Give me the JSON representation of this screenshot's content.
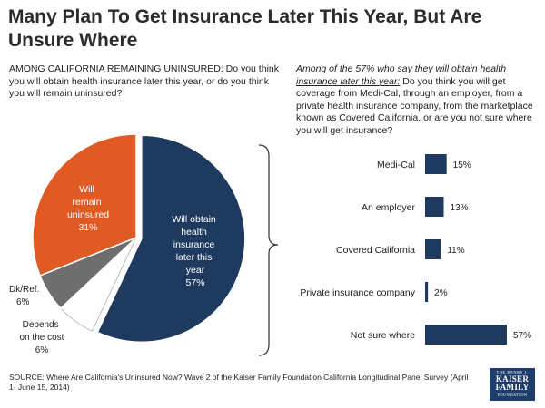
{
  "title": "Many Plan To Get Insurance Later This Year, But Are Unsure Where",
  "left_question": {
    "lead": "AMONG CALIFORNIA REMAINING UNINSURED:",
    "text": " Do you think you will obtain health insurance later this year, or do you think you will remain uninsured?"
  },
  "right_question": {
    "lead": "Among of the 57% who say they will obtain health insurance later this year:",
    "text": " Do you think you will get coverage from Medi-Cal, through an employer, from a private health insurance company, from the marketplace known as Covered California, or are you not sure where you will get insurance?"
  },
  "chart_data": [
    {
      "type": "pie",
      "slices": [
        {
          "label": "Will obtain health insurance later this year",
          "value": 57,
          "value_label": "57%",
          "color": "#1f3a5f"
        },
        {
          "label": "Depends on the cost",
          "value": 6,
          "value_label": "6%",
          "color": "#ffffff"
        },
        {
          "label": "Dk/Ref.",
          "value": 6,
          "value_label": "6%",
          "color": "#6e6e6e"
        },
        {
          "label": "Will remain uninsured",
          "value": 31,
          "value_label": "31%",
          "color": "#e05a24"
        }
      ]
    },
    {
      "type": "bar",
      "orientation": "horizontal",
      "categories": [
        "Medi-Cal",
        "An employer",
        "Covered California",
        "Private insurance company",
        "Not sure where"
      ],
      "values": [
        15,
        13,
        11,
        2,
        57
      ],
      "value_labels": [
        "15%",
        "13%",
        "11%",
        "2%",
        "57%"
      ],
      "color": "#1f3a5f",
      "xlim": [
        0,
        57
      ]
    }
  ],
  "source": "SOURCE: Where Are California's Uninsured Now? Wave 2 of the Kaiser Family Foundation California Longitudinal Panel Survey (April 1- June 15, 2014)",
  "logo": {
    "line1": "THE HENRY J.",
    "line2a": "KAISER",
    "line2b": "FAMILY",
    "line3": "FOUNDATION"
  }
}
